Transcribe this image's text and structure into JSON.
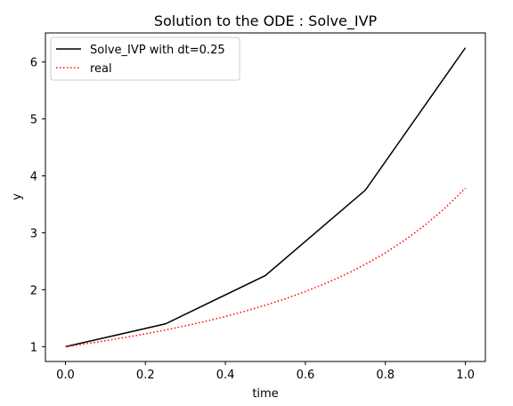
{
  "chart_data": {
    "type": "line",
    "title": "Solution to the ODE : Solve_IVP",
    "xlabel": "time",
    "ylabel": "y",
    "xlim": [
      -0.05,
      1.05
    ],
    "ylim": [
      0.74,
      6.51
    ],
    "xticks": [
      0.0,
      0.2,
      0.4,
      0.6,
      0.8,
      1.0
    ],
    "xtick_labels": [
      "0.0",
      "0.2",
      "0.4",
      "0.6",
      "0.8",
      "1.0"
    ],
    "yticks": [
      1,
      2,
      3,
      4,
      5,
      6
    ],
    "ytick_labels": [
      "1",
      "2",
      "3",
      "4",
      "5",
      "6"
    ],
    "grid": false,
    "legend_position": "top-left",
    "series": [
      {
        "name": "Solve_IVP with dt=0.25",
        "color": "#000000",
        "style": "solid",
        "x": [
          0.0,
          0.25,
          0.5,
          0.75,
          1.0
        ],
        "y": [
          1.0,
          1.4,
          2.25,
          3.75,
          6.25
        ]
      },
      {
        "name": "real",
        "color": "#ff0000",
        "style": "dotted",
        "x": [
          0.0,
          0.05,
          0.1,
          0.15,
          0.2,
          0.25,
          0.3,
          0.35,
          0.4,
          0.45,
          0.5,
          0.55,
          0.6,
          0.65,
          0.7,
          0.75,
          0.8,
          0.85,
          0.9,
          0.95,
          1.0
        ],
        "y": [
          1.0,
          1.0506,
          1.1049,
          1.1631,
          1.2257,
          1.2931,
          1.3659,
          1.4449,
          1.5309,
          1.6248,
          1.728,
          1.8419,
          1.9683,
          2.1094,
          2.2677,
          2.4462,
          2.6483,
          2.8781,
          3.1402,
          3.4401,
          3.7838
        ]
      }
    ]
  }
}
